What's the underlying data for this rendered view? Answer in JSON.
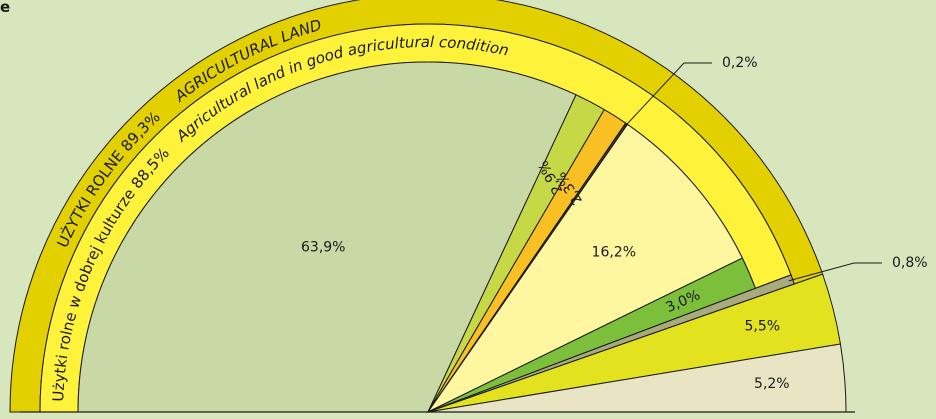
{
  "chart_data": {
    "type": "pie",
    "variant": "semicircle",
    "title": "",
    "outer_ring": {
      "label_pl": "UŻYTKI ROLNE 89,3%",
      "label_en": "AGRICULTURAL LAND",
      "value": 89.3,
      "color": "#e3d000"
    },
    "inner_ring": {
      "label_pl": "Użytki rolne w dobrej kulturze 88,5%",
      "label_en": "Agricultural land in good agricultural condition",
      "value": 88.5,
      "color": "#fff23a"
    },
    "slices": [
      {
        "label": "63,9%",
        "value": 63.9,
        "color": "#c9d9a5"
      },
      {
        "label": "2,9%",
        "value": 2.9,
        "color": "#c6d845"
      },
      {
        "label": "2,3%",
        "value": 2.3,
        "color": "#f8c022"
      },
      {
        "label": "0,2%",
        "value": 0.2,
        "color": "#3a3a3a"
      },
      {
        "label": "16,2%",
        "value": 16.2,
        "color": "#fff7a0"
      },
      {
        "label": "3,0%",
        "value": 3.0,
        "color": "#7cbf3b"
      },
      {
        "label": "0,8%",
        "value": 0.8,
        "color": "#a9aa7e"
      },
      {
        "label": "5,5%",
        "value": 5.5,
        "color": "#e3e21e"
      },
      {
        "label": "5,2%",
        "value": 5.2,
        "color": "#e9e4c3"
      }
    ],
    "fragment_label": "e"
  }
}
